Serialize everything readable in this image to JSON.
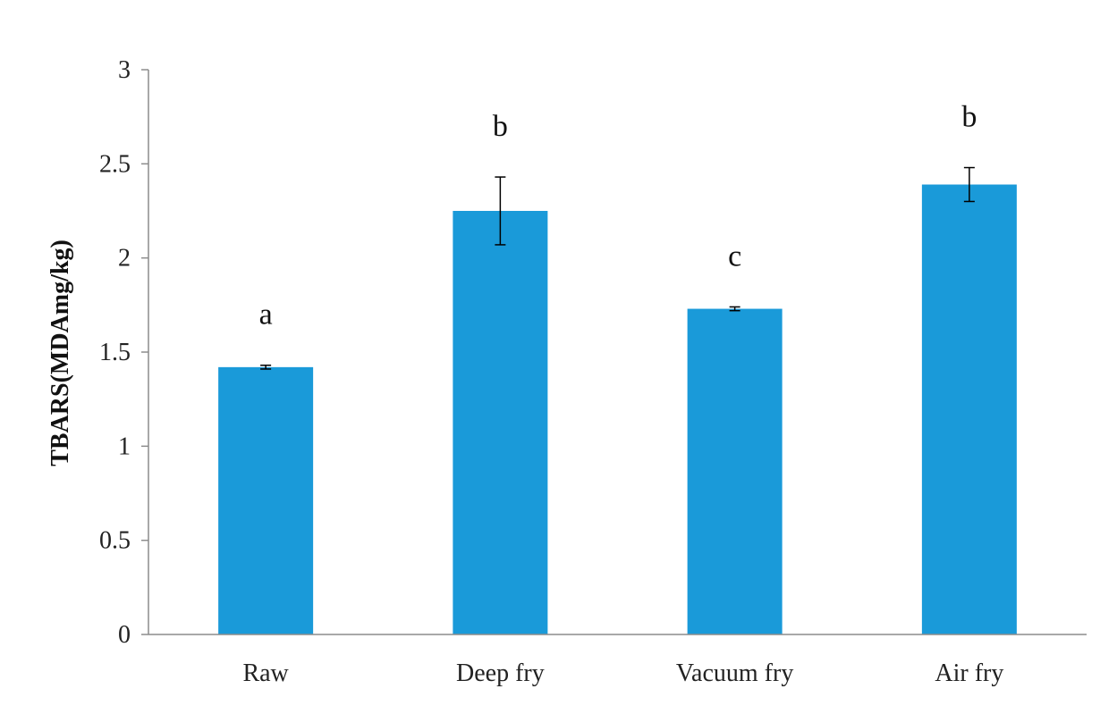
{
  "chart_data": {
    "type": "bar",
    "ylabel": "TBARS(MDAmg/kg)",
    "xlabel": "",
    "ylim": [
      0,
      3
    ],
    "yticks": [
      0,
      0.5,
      1,
      1.5,
      2,
      2.5,
      3
    ],
    "ytick_labels": [
      "0",
      "0.5",
      "1",
      "1.5",
      "2",
      "2.5",
      "3"
    ],
    "grid": false,
    "categories": [
      "Raw",
      "Deep fry",
      "Vacuum fry",
      "Air fry"
    ],
    "values": [
      1.42,
      2.25,
      1.73,
      2.39
    ],
    "errors": [
      0.01,
      0.18,
      0.01,
      0.09
    ],
    "significance_letters": [
      "a",
      "b",
      "c",
      "b"
    ],
    "colors": {
      "bar": "#1a9ad9",
      "axis": "#8c8c8c",
      "error": "#000000"
    }
  }
}
